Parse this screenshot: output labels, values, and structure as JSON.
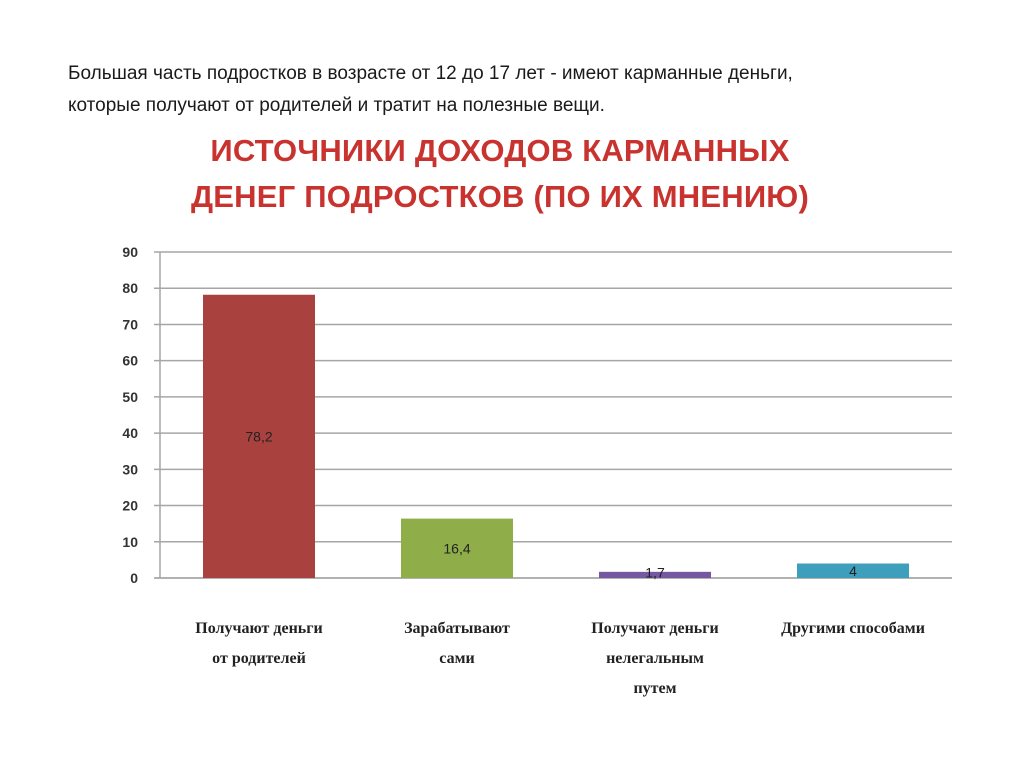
{
  "intro": {
    "line1": "Большая часть подростков в возрасте от 12 до 17 лет - имеют карманные деньги,",
    "line2": "которые получают от родителей и тратит  на полезные вещи."
  },
  "colors": {
    "title": "#c8332f",
    "grid": "#a6a6a6",
    "axis_text": "#333333"
  },
  "chart_data": {
    "type": "bar",
    "title_line1": "ИСТОЧНИКИ ДОХОДОВ КАРМАННЫХ",
    "title_line2": "ДЕНЕГ ПОДРОСТКОВ (ПО ИХ МНЕНИЮ)",
    "xlabel": "",
    "ylabel": "",
    "ylim": [
      0,
      90
    ],
    "yticks": [
      0,
      10,
      20,
      30,
      40,
      50,
      60,
      70,
      80,
      90
    ],
    "grid": true,
    "categories": [
      {
        "lines": [
          "Получают деньги",
          "от родителей"
        ]
      },
      {
        "lines": [
          "Зарабатывают",
          "сами"
        ]
      },
      {
        "lines": [
          "Получают деньги",
          "нелегальным",
          "путем"
        ]
      },
      {
        "lines": [
          "Другими способами"
        ]
      }
    ],
    "values": [
      78.2,
      16.4,
      1.7,
      4
    ],
    "value_labels": [
      "78,2",
      "16,4",
      "1,7",
      "4"
    ],
    "bar_colors": [
      "#a9413e",
      "#8fae49",
      "#7458a0",
      "#3e9fbd"
    ]
  }
}
